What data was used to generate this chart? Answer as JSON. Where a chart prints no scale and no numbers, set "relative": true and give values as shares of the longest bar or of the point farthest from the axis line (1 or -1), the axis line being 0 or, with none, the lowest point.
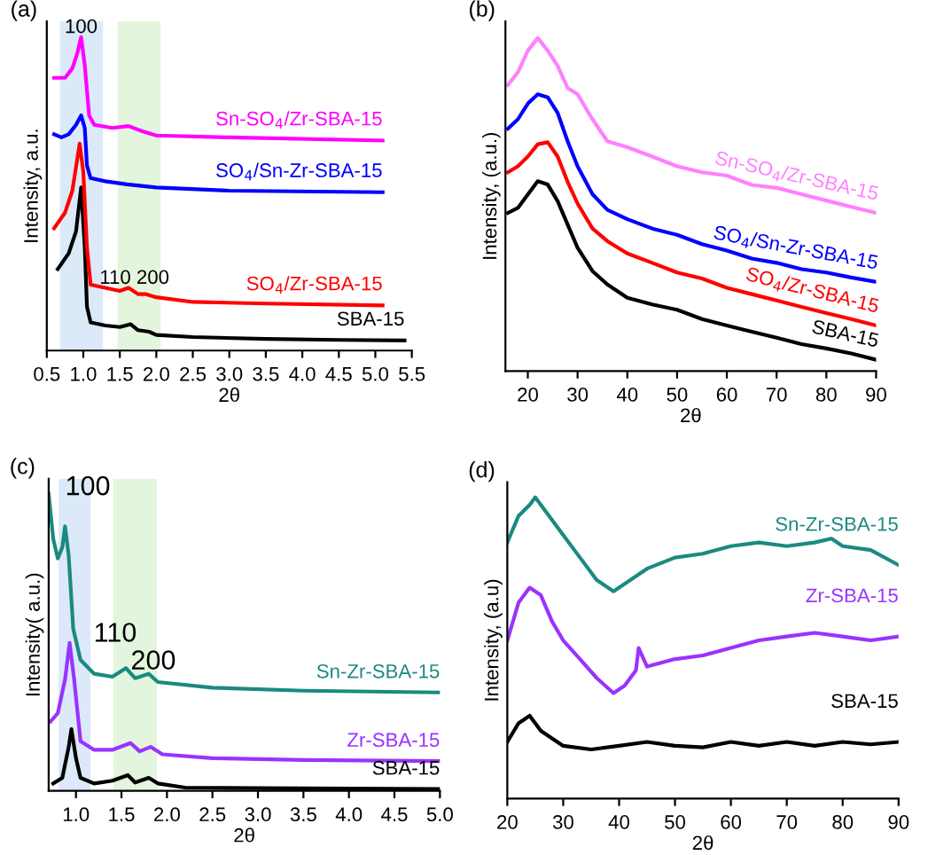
{
  "chart_data": [
    {
      "type": "line",
      "title": "(a)",
      "xlabel": "2θ",
      "ylabel": "Intensity, a.u.",
      "relative": true,
      "legend": false,
      "grid": false,
      "xlim": [
        0.5,
        5.5
      ],
      "xticks": [
        0.5,
        {
          "value": 1,
          "label": "1.0"
        },
        1.5,
        {
          "value": 2,
          "label": "2.0"
        },
        2.5,
        {
          "value": 3,
          "label": "3.0"
        },
        3.5,
        {
          "value": 4,
          "label": "4.0"
        },
        4.5,
        {
          "value": 5,
          "label": "5.0"
        },
        5.5
      ],
      "bands": [
        {
          "axis": "x",
          "from": 0.68,
          "to": 1.27,
          "color": "#dce9f8"
        },
        {
          "axis": "x",
          "from": 1.47,
          "to": 2.06,
          "color": "#e3f5dc"
        }
      ],
      "annotations": [
        {
          "text": "100",
          "x": 0.97,
          "y": 1.0
        },
        {
          "text": "110 200",
          "x": 1.7,
          "y": 0.2
        }
      ],
      "series": [
        {
          "name": "SBA-15",
          "color": "#000000",
          "x": [
            0.65,
            0.8,
            0.9,
            0.97,
            1.02,
            1.05,
            1.1,
            1.3,
            1.5,
            1.65,
            1.75,
            1.9,
            2.0,
            2.5,
            3.5,
            4.5,
            5.4
          ],
          "values": [
            0.26,
            0.31,
            0.38,
            0.52,
            0.33,
            0.14,
            0.09,
            0.08,
            0.075,
            0.084,
            0.065,
            0.06,
            0.05,
            0.043,
            0.037,
            0.034,
            0.032
          ]
        },
        {
          "name": "SO$_{4}$/Zr-SBA-15",
          "color": "#ff0000",
          "x": [
            0.6,
            0.75,
            0.85,
            0.95,
            1.0,
            1.05,
            1.1,
            1.3,
            1.5,
            1.62,
            1.75,
            1.85,
            2.0,
            2.5,
            3.5,
            5.1
          ],
          "values": [
            0.39,
            0.44,
            0.51,
            0.66,
            0.57,
            0.33,
            0.21,
            0.2,
            0.19,
            0.2,
            0.18,
            0.18,
            0.17,
            0.155,
            0.15,
            0.144
          ]
        },
        {
          "name": "SO$_{4}$/Sn-Zr-SBA-15",
          "color": "#0000ff",
          "x": [
            0.6,
            0.7,
            0.8,
            0.9,
            0.97,
            1.02,
            1.05,
            1.1,
            1.3,
            1.6,
            2.0,
            3.0,
            5.1
          ],
          "values": [
            0.69,
            0.68,
            0.69,
            0.72,
            0.75,
            0.71,
            0.59,
            0.55,
            0.54,
            0.53,
            0.52,
            0.51,
            0.505
          ]
        },
        {
          "name": "Sn-SO$_{4}$/Zr-SBA-15",
          "color": "#ff00ff",
          "x": [
            0.6,
            0.75,
            0.85,
            0.92,
            0.97,
            1.02,
            1.08,
            1.15,
            1.4,
            1.62,
            1.8,
            2.0,
            3.0,
            5.1
          ],
          "values": [
            0.87,
            0.87,
            0.9,
            0.95,
            1.0,
            0.91,
            0.75,
            0.72,
            0.71,
            0.716,
            0.7,
            0.686,
            0.68,
            0.67
          ]
        }
      ]
    },
    {
      "type": "line",
      "title": "(b)",
      "xlabel": "2θ",
      "ylabel": "Intensity, (a.u.)",
      "relative": true,
      "legend": false,
      "grid": false,
      "xlim": [
        15.5,
        90
      ],
      "xticks": [
        20,
        30,
        40,
        50,
        60,
        70,
        80,
        90
      ],
      "series": [
        {
          "name": "SBA-15",
          "color": "#000000",
          "x": [
            16,
            18,
            20,
            22,
            24,
            26,
            28,
            30,
            33,
            36,
            40,
            45,
            50,
            55,
            60,
            65,
            70,
            75,
            80,
            85,
            90
          ],
          "values": [
            0.475,
            0.49,
            0.53,
            0.57,
            0.56,
            0.51,
            0.44,
            0.37,
            0.3,
            0.26,
            0.22,
            0.2,
            0.184,
            0.156,
            0.137,
            0.118,
            0.1,
            0.081,
            0.068,
            0.053,
            0.034
          ]
        },
        {
          "name": "SO$_{4}$/Zr-SBA-15",
          "color": "#ff0000",
          "x": [
            16,
            18,
            20,
            22,
            24,
            26,
            28,
            30,
            33,
            36,
            40,
            45,
            50,
            55,
            60,
            65,
            70,
            75,
            80,
            85,
            90
          ],
          "values": [
            0.597,
            0.615,
            0.644,
            0.681,
            0.687,
            0.644,
            0.568,
            0.503,
            0.428,
            0.39,
            0.353,
            0.325,
            0.296,
            0.278,
            0.25,
            0.231,
            0.212,
            0.193,
            0.174,
            0.156,
            0.137
          ]
        },
        {
          "name": "SO$_{4}$/Sn-Zr-SBA-15",
          "color": "#0000ff",
          "x": [
            16,
            18,
            20,
            22,
            24,
            26,
            28,
            30,
            33,
            36,
            40,
            45,
            50,
            55,
            60,
            65,
            70,
            75,
            80,
            85,
            90
          ],
          "values": [
            0.728,
            0.756,
            0.803,
            0.831,
            0.822,
            0.775,
            0.69,
            0.615,
            0.531,
            0.484,
            0.456,
            0.428,
            0.409,
            0.381,
            0.362,
            0.338,
            0.325,
            0.306,
            0.296,
            0.281,
            0.268
          ]
        },
        {
          "name": "Sn-SO$_{4}$/Zr-SBA-15",
          "color": "#ff80ff",
          "x": [
            16,
            18,
            20,
            22,
            24,
            26,
            28,
            30,
            33,
            36,
            40,
            45,
            50,
            55,
            60,
            65,
            70,
            75,
            80,
            85,
            90
          ],
          "values": [
            0.859,
            0.897,
            0.962,
            1.0,
            0.962,
            0.916,
            0.85,
            0.831,
            0.756,
            0.69,
            0.672,
            0.644,
            0.615,
            0.597,
            0.587,
            0.559,
            0.55,
            0.531,
            0.512,
            0.493,
            0.475
          ]
        }
      ]
    },
    {
      "type": "line",
      "title": "(c)",
      "xlabel": "2θ",
      "ylabel": "Intensity( a.u.)",
      "relative": true,
      "legend": false,
      "grid": false,
      "xlim": [
        0.7,
        5.0
      ],
      "xticks": [
        {
          "value": 1,
          "label": "1.0"
        },
        1.5,
        {
          "value": 2,
          "label": "2.0"
        },
        2.5,
        {
          "value": 3,
          "label": "3.0"
        },
        3.5,
        {
          "value": 4,
          "label": "4.0"
        },
        4.5,
        {
          "value": 5,
          "label": "5.0"
        }
      ],
      "bands": [
        {
          "axis": "x",
          "from": 0.81,
          "to": 1.16,
          "color": "#dce9f8"
        },
        {
          "axis": "x",
          "from": 1.41,
          "to": 1.89,
          "color": "#e3f5dc"
        }
      ],
      "annotations": [
        "100",
        "110",
        {
          "text": "200",
          "x": 1.85,
          "y": 0.39
        }
      ],
      "series": [
        {
          "name": "SBA-15",
          "color": "#000000",
          "x": [
            0.75,
            0.85,
            0.92,
            0.95,
            1.0,
            1.05,
            1.2,
            1.4,
            1.57,
            1.65,
            1.8,
            1.9,
            2.2,
            3.0,
            5.0
          ],
          "values": [
            0.025,
            0.044,
            0.148,
            0.208,
            0.11,
            0.044,
            0.025,
            0.034,
            0.053,
            0.028,
            0.044,
            0.025,
            0.011,
            0.009,
            0.006
          ]
        },
        {
          "name": "Zr-SBA-15",
          "color": "#9933ff",
          "x": [
            0.72,
            0.8,
            0.88,
            0.93,
            0.98,
            1.05,
            1.2,
            1.4,
            1.6,
            1.7,
            1.82,
            1.95,
            2.5,
            3.5,
            5.0
          ],
          "values": [
            0.233,
            0.261,
            0.375,
            0.498,
            0.375,
            0.167,
            0.138,
            0.138,
            0.161,
            0.133,
            0.148,
            0.123,
            0.11,
            0.104,
            0.1
          ]
        },
        {
          "name": "Sn-Zr-SBA-15",
          "color": "#1a8a80",
          "x": [
            0.7,
            0.75,
            0.8,
            0.85,
            0.88,
            0.92,
            0.97,
            1.05,
            1.2,
            1.4,
            1.55,
            1.65,
            1.8,
            1.9,
            2.5,
            3.5,
            5.0
          ],
          "values": [
            1.0,
            0.848,
            0.782,
            0.82,
            0.89,
            0.792,
            0.545,
            0.441,
            0.394,
            0.384,
            0.413,
            0.379,
            0.394,
            0.366,
            0.347,
            0.337,
            0.331
          ]
        }
      ]
    },
    {
      "type": "line",
      "title": "(d)",
      "xlabel": "2θ",
      "ylabel": "Intensity, (a.u)",
      "relative": true,
      "legend": false,
      "grid": false,
      "xlim": [
        20,
        90
      ],
      "xticks": [
        20,
        30,
        40,
        50,
        60,
        70,
        80,
        90
      ],
      "series": [
        {
          "name": "SBA-15",
          "color": "#000000",
          "x": [
            20,
            22,
            24,
            26,
            30,
            35,
            40,
            45,
            50,
            55,
            60,
            65,
            70,
            75,
            80,
            85,
            90
          ],
          "values": [
            0.188,
            0.25,
            0.275,
            0.225,
            0.175,
            0.163,
            0.175,
            0.188,
            0.175,
            0.17,
            0.188,
            0.175,
            0.188,
            0.175,
            0.188,
            0.18,
            0.188
          ]
        },
        {
          "name": "Zr-SBA-15",
          "color": "#9933ff",
          "x": [
            20,
            22,
            24,
            26,
            28,
            30,
            33,
            36,
            39,
            41,
            43,
            43.5,
            45,
            50,
            55,
            60,
            65,
            70,
            75,
            80,
            85,
            90
          ],
          "values": [
            0.525,
            0.65,
            0.7,
            0.675,
            0.588,
            0.525,
            0.463,
            0.4,
            0.35,
            0.375,
            0.425,
            0.5,
            0.438,
            0.463,
            0.475,
            0.5,
            0.525,
            0.538,
            0.55,
            0.538,
            0.525,
            0.538
          ]
        },
        {
          "name": "Sn-Zr-SBA-15",
          "color": "#1a8a80",
          "x": [
            20,
            22,
            24,
            25,
            27,
            30,
            33,
            36,
            39,
            42,
            45,
            50,
            55,
            60,
            65,
            70,
            75,
            78,
            80,
            85,
            90
          ],
          "values": [
            0.85,
            0.938,
            0.975,
            1.0,
            0.95,
            0.875,
            0.8,
            0.725,
            0.688,
            0.725,
            0.763,
            0.8,
            0.813,
            0.838,
            0.85,
            0.838,
            0.85,
            0.863,
            0.838,
            0.825,
            0.775
          ]
        }
      ]
    }
  ]
}
